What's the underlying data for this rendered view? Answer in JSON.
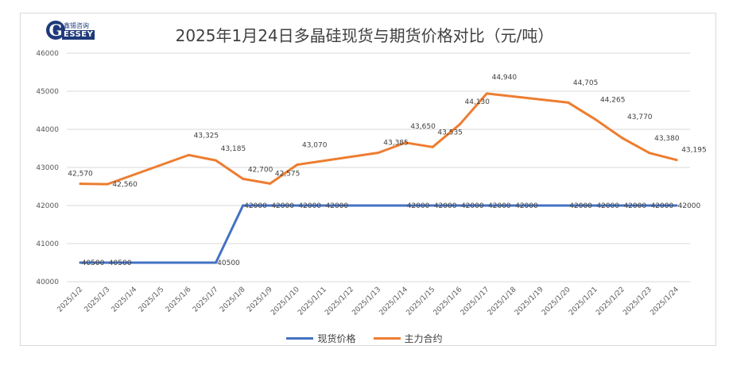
{
  "logo": {
    "cn": "鑫锡咨询",
    "en": "ESSEY",
    "letter": "G"
  },
  "chart_data": {
    "type": "line",
    "title": "2025年1月24日多晶硅现货与期货价格对比（元/吨）",
    "categories": [
      "2025/1/2",
      "2025/1/3",
      "2025/1/4",
      "2025/1/5",
      "2025/1/6",
      "2025/1/7",
      "2025/1/8",
      "2025/1/9",
      "2025/1/10",
      "2025/1/11",
      "2025/1/12",
      "2025/1/13",
      "2025/1/14",
      "2025/1/15",
      "2025/1/16",
      "2025/1/17",
      "2025/1/18",
      "2025/1/19",
      "2025/1/20",
      "2025/1/21",
      "2025/1/22",
      "2025/1/23",
      "2025/1/24"
    ],
    "ylim": [
      40000,
      46000
    ],
    "yticks": [
      40000,
      41000,
      42000,
      43000,
      44000,
      45000,
      46000
    ],
    "grid": true,
    "legend_position": "bottom",
    "series": [
      {
        "name": "现货价格",
        "color": "#4472c4",
        "values": [
          40500,
          40500,
          null,
          null,
          null,
          40500,
          42000,
          42000,
          42000,
          42000,
          null,
          null,
          42000,
          42000,
          42000,
          42000,
          42000,
          null,
          42000,
          42000,
          42000,
          42000,
          42000
        ],
        "labels": [
          "40500",
          "40500",
          null,
          null,
          null,
          "40500",
          "42000",
          "42000",
          "42000",
          "42000",
          null,
          null,
          "42000",
          "42000",
          "42000",
          "42000",
          "42000",
          null,
          "42000",
          "42000",
          "42000",
          "42000",
          "42000"
        ]
      },
      {
        "name": "主力合约",
        "color": "#ed7d31",
        "values": [
          42570,
          42560,
          null,
          null,
          43325,
          43185,
          42700,
          42575,
          43070,
          null,
          null,
          43385,
          43650,
          43535,
          44130,
          44940,
          null,
          null,
          44705,
          44265,
          43770,
          43380,
          43195
        ],
        "labels": [
          "42,570",
          "42,560",
          null,
          null,
          "43,325",
          "43,185",
          "42,700",
          "42,575",
          "43,070",
          null,
          null,
          "43,385",
          "43,650",
          "43,535",
          "44,130",
          "44,940",
          null,
          null,
          "44,705",
          "44,265",
          "43,770",
          "43,380",
          "43,195"
        ]
      }
    ]
  }
}
